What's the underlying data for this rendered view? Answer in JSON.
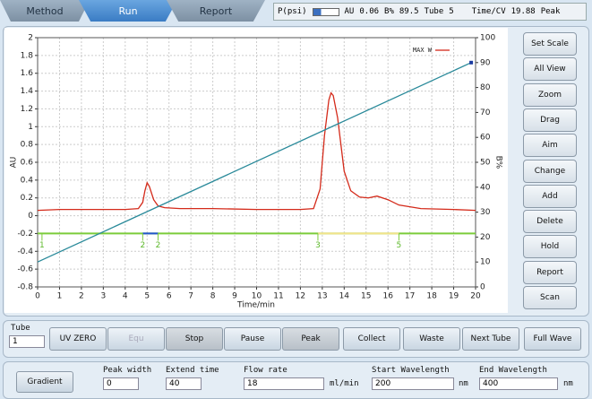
{
  "tabs": [
    "Method",
    "Run",
    "Report"
  ],
  "status": {
    "pressure_label": "P(psi)",
    "au_label": "AU",
    "au_value": "0.06",
    "b_label": "B%",
    "b_value": "89.5",
    "tube_label": "Tube",
    "tube_value": "5",
    "time_label": "Time/CV",
    "time_value": "19.88",
    "mode": "Peak"
  },
  "chart_data": {
    "type": "line",
    "x_label": "Time/min",
    "y_label": "AU",
    "y2_label": "B%",
    "xlim": [
      0,
      20
    ],
    "xticks": [
      0,
      1,
      2,
      3,
      4,
      5,
      6,
      7,
      8,
      9,
      10,
      11,
      12,
      13,
      14,
      15,
      16,
      17,
      18,
      19,
      20
    ],
    "ylim": [
      -0.8,
      2
    ],
    "yticks": [
      -0.8,
      -0.6,
      -0.4,
      -0.2,
      0,
      0.2,
      0.4,
      0.6,
      0.8,
      1,
      1.2,
      1.4,
      1.6,
      1.8,
      2
    ],
    "y2lim": [
      0,
      100
    ],
    "y2ticks": [
      0,
      10,
      20,
      30,
      40,
      50,
      60,
      70,
      80,
      90,
      100
    ],
    "grid": true,
    "legend": "upper right",
    "x": [
      0,
      1,
      2,
      3,
      4,
      4.6,
      4.8,
      4.9,
      5.0,
      5.1,
      5.3,
      5.5,
      5.8,
      6.5,
      8,
      10,
      12,
      12.6,
      12.9,
      13.1,
      13.3,
      13.4,
      13.5,
      13.7,
      14.0,
      14.3,
      14.7,
      15.1,
      15.5,
      16.0,
      16.5,
      17.5,
      19,
      20
    ],
    "series": [
      {
        "name": "MAX W",
        "color": "#d42a1a",
        "values": [
          0.06,
          0.07,
          0.07,
          0.07,
          0.07,
          0.08,
          0.15,
          0.28,
          0.37,
          0.33,
          0.18,
          0.11,
          0.09,
          0.08,
          0.08,
          0.07,
          0.07,
          0.08,
          0.3,
          0.9,
          1.3,
          1.38,
          1.35,
          1.1,
          0.5,
          0.28,
          0.21,
          0.2,
          0.22,
          0.18,
          0.12,
          0.08,
          0.07,
          0.06
        ]
      },
      {
        "color": "#2a8a9a",
        "axis": "y2",
        "x": [
          0,
          19.8
        ],
        "values": [
          10,
          90
        ]
      }
    ],
    "fraction_level": -0.2,
    "fraction_color": "#7ccc3a",
    "fractions": [
      {
        "x": 0.2,
        "label": "1"
      },
      {
        "x": 4.8,
        "label": "2"
      },
      {
        "x": 5.5,
        "label": "2"
      },
      {
        "x": 12.8,
        "label": "3"
      },
      {
        "x": 16.5,
        "label": "5"
      }
    ],
    "collected": [
      {
        "start": 4.8,
        "end": 5.5,
        "color": "#2255cc"
      },
      {
        "start": 12.8,
        "end": 16.5,
        "color": "#f2e38a"
      }
    ]
  },
  "side_buttons": [
    "Set Scale",
    "All View",
    "Zoom",
    "Drag",
    "Aim",
    "Change",
    "Add",
    "Delete",
    "Hold",
    "Report",
    "Scan"
  ],
  "controls": {
    "tube_label": "Tube",
    "tube_value": "1",
    "buttons": [
      "UV ZERO",
      "Equ",
      "Stop",
      "Pause",
      "Peak",
      "Collect",
      "Waste",
      "Next Tube",
      "Full Wave"
    ]
  },
  "bottom": {
    "gradient": "Gradient",
    "peak_width_label": "Peak width",
    "peak_width": "0",
    "extend_time_label": "Extend time",
    "extend_time": "40",
    "flow_rate_label": "Flow rate",
    "flow_rate": "18",
    "flow_unit": "ml/min",
    "start_wl_label": "Start Wavelength",
    "start_wl": "200",
    "start_unit": "nm",
    "end_wl_label": "End Wavelength",
    "end_wl": "400",
    "end_unit": "nm"
  }
}
